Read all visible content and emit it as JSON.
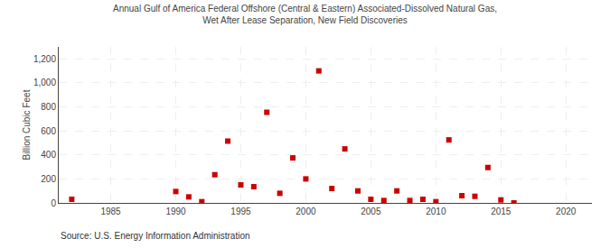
{
  "chart_data": {
    "type": "scatter",
    "title": "Annual Gulf of America Federal Offshore (Central & Eastern) Associated-Dissolved Natural Gas,\nWet After Lease Separation, New Field Discoveries",
    "ylabel": "Billion Cubic Feet",
    "annotations": [
      "Source: U.S. Energy Information Administration"
    ],
    "x": [
      1982,
      1990,
      1991,
      1992,
      1993,
      1994,
      1995,
      1996,
      1997,
      1998,
      1999,
      2000,
      2001,
      2002,
      2003,
      2004,
      2005,
      2006,
      2007,
      2008,
      2009,
      2010,
      2011,
      2012,
      2013,
      2014,
      2015,
      2016
    ],
    "values": [
      30,
      95,
      50,
      10,
      235,
      515,
      150,
      135,
      755,
      80,
      375,
      200,
      1100,
      120,
      450,
      100,
      30,
      20,
      100,
      20,
      30,
      10,
      525,
      60,
      55,
      295,
      25,
      0
    ],
    "color": "#cc0000",
    "marker": "square",
    "xlim": [
      1981,
      2022
    ],
    "ylim": [
      0,
      1300
    ],
    "xticks": [
      1985,
      1990,
      1995,
      2000,
      2005,
      2010,
      2015,
      2020
    ],
    "yticks": [
      0,
      200,
      400,
      600,
      800,
      {
        "value": 1000,
        "label": "1,000"
      },
      {
        "value": 1200,
        "label": "1,200"
      }
    ],
    "grid": true
  }
}
